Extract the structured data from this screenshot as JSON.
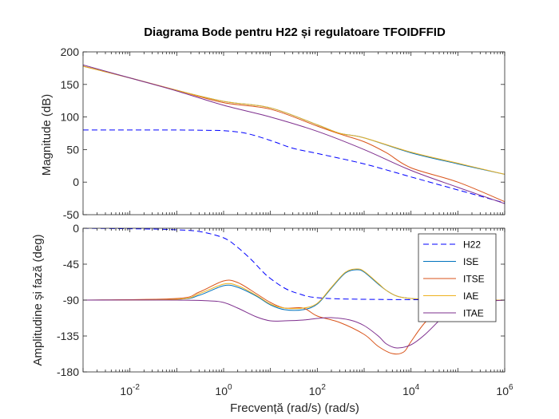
{
  "chart_data": [
    {
      "type": "line",
      "title": "Diagrama Bode pentru H22 și regulatoare TFOIDFFID",
      "ylabel": "Magnitude (dB)",
      "xscale": "log",
      "xlim": [
        0.001,
        1000000
      ],
      "ylim": [
        -50,
        200
      ],
      "yticks": [
        {
          "value": -50,
          "label": "-50"
        },
        {
          "value": 0,
          "label": "0"
        },
        {
          "value": 50,
          "label": "50"
        },
        {
          "value": 100,
          "label": "100"
        },
        {
          "value": 150,
          "label": "150"
        },
        {
          "value": 200,
          "label": "200"
        }
      ],
      "grid": false,
      "series": [
        {
          "name": "H22",
          "color": "#0000ff",
          "dash": true,
          "x": [
            0.001,
            0.1,
            0.5,
            1,
            3,
            10,
            30,
            100,
            1000,
            10000,
            100000,
            1000000
          ],
          "y": [
            80,
            80,
            79.5,
            79,
            75,
            64,
            52,
            44,
            28,
            8,
            -12,
            -32
          ]
        },
        {
          "name": "ISE",
          "color": "#0072bd",
          "x": [
            0.001,
            0.01,
            0.1,
            1,
            10,
            100,
            300,
            1000,
            10000,
            100000,
            1000000
          ],
          "y": [
            178,
            160,
            141,
            124,
            114,
            88,
            75,
            68,
            45,
            28,
            12
          ]
        },
        {
          "name": "ITSE",
          "color": "#d95319",
          "x": [
            0.001,
            0.01,
            0.1,
            1,
            10,
            100,
            300,
            1000,
            3000,
            10000,
            100000,
            1000000
          ],
          "y": [
            178,
            160,
            141,
            122,
            112,
            86,
            74,
            62,
            45,
            22,
            0,
            -30
          ]
        },
        {
          "name": "IAE",
          "color": "#edb120",
          "x": [
            0.001,
            0.01,
            0.1,
            1,
            10,
            100,
            300,
            1000,
            10000,
            100000,
            1000000
          ],
          "y": [
            178,
            160,
            141,
            124,
            114,
            88,
            75,
            68,
            46,
            29,
            12
          ]
        },
        {
          "name": "ITAE",
          "color": "#7e2f8e",
          "x": [
            0.001,
            0.01,
            0.1,
            1,
            10,
            100,
            1000,
            10000,
            100000,
            1000000
          ],
          "y": [
            180,
            160,
            140,
            118,
            100,
            78,
            50,
            18,
            -8,
            -33
          ]
        }
      ]
    },
    {
      "type": "line",
      "xlabel": "Frecvență (rad/s)  (rad/s)",
      "ylabel": "Amplitudine și fază (deg)",
      "xscale": "log",
      "xlim": [
        0.001,
        1000000
      ],
      "ylim": [
        -180,
        0
      ],
      "xticks": [
        {
          "value": 0.01,
          "base": "10",
          "exp": "-2"
        },
        {
          "value": 1,
          "base": "10",
          "exp": "0"
        },
        {
          "value": 100,
          "base": "10",
          "exp": "2"
        },
        {
          "value": 10000,
          "base": "10",
          "exp": "4"
        },
        {
          "value": 1000000,
          "base": "10",
          "exp": "6"
        }
      ],
      "yticks": [
        {
          "value": -180,
          "label": "-180"
        },
        {
          "value": -135,
          "label": "-135"
        },
        {
          "value": -90,
          "label": "-90"
        },
        {
          "value": -45,
          "label": "-45"
        },
        {
          "value": 0,
          "label": "0"
        }
      ],
      "grid": false,
      "legend": "top-right",
      "series": [
        {
          "name": "H22",
          "color": "#0000ff",
          "dash": true,
          "x": [
            0.001,
            0.03,
            0.1,
            0.3,
            1,
            2,
            4,
            7,
            10,
            20,
            40,
            100,
            1000,
            1000000
          ],
          "y": [
            0,
            -1,
            -2,
            -4,
            -12,
            -24,
            -40,
            -55,
            -63,
            -75,
            -82,
            -87,
            -89,
            -90
          ]
        },
        {
          "name": "ISE",
          "color": "#0072bd",
          "x": [
            0.001,
            0.1,
            0.3,
            1,
            2,
            5,
            10,
            20,
            50,
            100,
            200,
            400,
            700,
            1000,
            2000,
            3000,
            5000,
            10000,
            30000,
            100000,
            1000000
          ],
          "y": [
            -90,
            -89,
            -84,
            -72,
            -74,
            -85,
            -96,
            -102,
            -102,
            -95,
            -75,
            -56,
            -52,
            -55,
            -70,
            -78,
            -85,
            -88,
            -89,
            -90,
            -90
          ]
        },
        {
          "name": "ITSE",
          "color": "#d95319",
          "x": [
            0.001,
            0.1,
            0.3,
            1,
            2,
            5,
            10,
            20,
            50,
            100,
            300,
            1000,
            2000,
            4000,
            7000,
            10000,
            20000,
            50000,
            100000,
            1000000
          ],
          "y": [
            -90,
            -88,
            -80,
            -66,
            -68,
            -82,
            -93,
            -100,
            -100,
            -110,
            -118,
            -133,
            -148,
            -157,
            -155,
            -142,
            -118,
            -97,
            -92,
            -90
          ]
        },
        {
          "name": "IAE",
          "color": "#edb120",
          "x": [
            0.001,
            0.1,
            0.3,
            1,
            2,
            5,
            10,
            20,
            50,
            100,
            200,
            400,
            700,
            1000,
            2000,
            3000,
            5000,
            10000,
            30000,
            100000,
            1000000
          ],
          "y": [
            -90,
            -89,
            -82,
            -70,
            -72,
            -84,
            -95,
            -100,
            -100,
            -94,
            -74,
            -55,
            -51,
            -54,
            -69,
            -78,
            -85,
            -88,
            -89,
            -90,
            -90
          ]
        },
        {
          "name": "ITAE",
          "color": "#7e2f8e",
          "x": [
            0.001,
            0.1,
            0.5,
            1,
            2,
            5,
            10,
            20,
            50,
            100,
            200,
            500,
            1000,
            2000,
            3000,
            5000,
            10000,
            20000,
            50000,
            100000,
            1000000
          ],
          "y": [
            -90,
            -90,
            -91,
            -93,
            -100,
            -111,
            -116,
            -116,
            -115,
            -113,
            -112,
            -115,
            -122,
            -135,
            -145,
            -150,
            -146,
            -133,
            -110,
            -95,
            -90
          ]
        }
      ]
    }
  ]
}
